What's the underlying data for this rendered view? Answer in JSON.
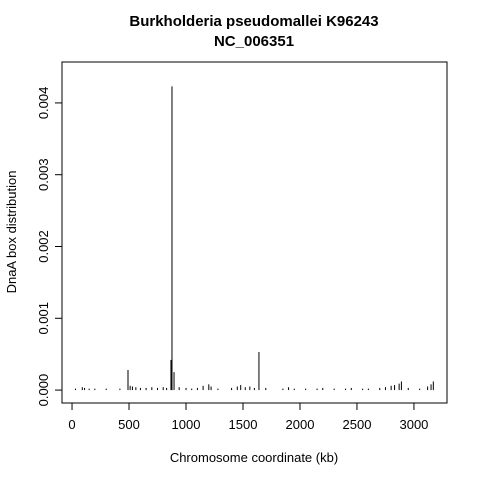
{
  "chart_data": {
    "type": "spike",
    "title": "Burkholderia pseudomallei K96243",
    "subtitle": "NC_006351",
    "x_label": "Chromosome coordinate (kb)",
    "y_label": "DnaA box distribution",
    "color": "#000000",
    "x": [
      30,
      90,
      110,
      150,
      200,
      300,
      420,
      491,
      510,
      530,
      560,
      600,
      650,
      700,
      750,
      800,
      830,
      868,
      877,
      895,
      940,
      1000,
      1050,
      1100,
      1150,
      1200,
      1220,
      1280,
      1400,
      1450,
      1480,
      1520,
      1560,
      1600,
      1640,
      1700,
      1850,
      1900,
      1950,
      2050,
      2150,
      2200,
      2300,
      2400,
      2450,
      2550,
      2600,
      2700,
      2750,
      2800,
      2830,
      2870,
      2890,
      2950,
      3050,
      3120,
      3150,
      3170
    ],
    "values": [
      2e-05,
      4e-05,
      3e-05,
      2e-05,
      2e-05,
      2e-05,
      2e-05,
      0.00028,
      6e-05,
      5e-05,
      4e-05,
      3e-05,
      3e-05,
      4e-05,
      3e-05,
      4e-05,
      3e-05,
      0.00042,
      0.00423,
      0.00025,
      4e-05,
      3e-05,
      2e-05,
      3e-05,
      6e-05,
      8e-05,
      5e-05,
      2e-05,
      3e-05,
      5e-05,
      7e-05,
      4e-05,
      5e-05,
      3e-05,
      0.00053,
      3e-05,
      2e-05,
      4e-05,
      2e-05,
      2e-05,
      2e-05,
      3e-05,
      2e-05,
      2e-05,
      3e-05,
      2e-05,
      2e-05,
      3e-05,
      4e-05,
      6e-05,
      7e-05,
      9e-05,
      0.00012,
      3e-05,
      2e-05,
      5e-05,
      8e-05,
      0.00012
    ],
    "xlim": [
      -88,
      3290
    ],
    "ylim": [
      -0.00018,
      0.00457
    ],
    "xticks": [
      0,
      500,
      1000,
      1500,
      2000,
      2500,
      3000
    ],
    "yticks": [
      {
        "value": 0,
        "label": "0.000"
      },
      {
        "value": 0.001,
        "label": "0.001"
      },
      {
        "value": 0.002,
        "label": "0.002"
      },
      {
        "value": 0.003,
        "label": "0.003"
      },
      {
        "value": 0.004,
        "label": "0.004"
      }
    ]
  }
}
